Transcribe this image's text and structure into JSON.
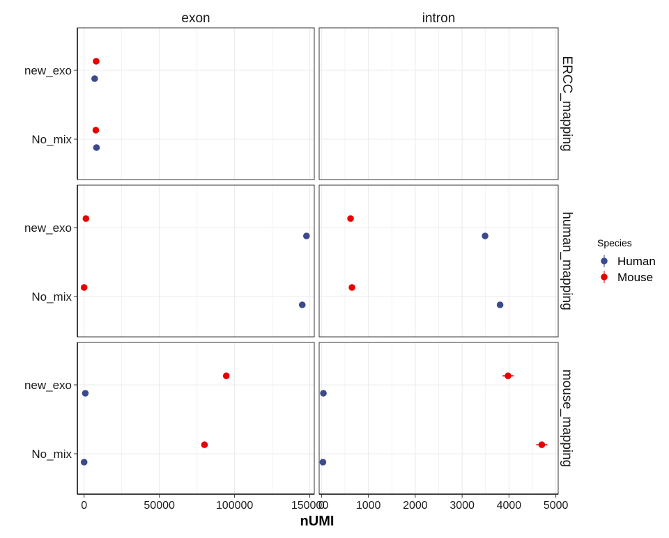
{
  "chart_data": {
    "type": "scatter",
    "title": "",
    "xlabel": "nUMI",
    "ylabel": "",
    "columns": [
      "exon",
      "intron"
    ],
    "rows": [
      "ERCC_mapping",
      "human_mapping",
      "mouse_mapping"
    ],
    "categories": [
      "new_exo",
      "No_mix"
    ],
    "x_ticks": {
      "exon": [
        "0",
        "50000",
        "100000",
        "150000"
      ],
      "intron": [
        "0",
        "1000",
        "2000",
        "3000",
        "4000",
        "5000"
      ]
    },
    "xlim": {
      "exon": [
        -4500,
        153000
      ],
      "intron": [
        -50,
        5050
      ]
    },
    "grid": true,
    "legend": {
      "title": "Species",
      "position": "right",
      "entries": [
        {
          "name": "Human",
          "color": "#3b4a8c"
        },
        {
          "name": "Mouse",
          "color": "#e60000"
        }
      ]
    },
    "series": [
      {
        "name": "Human",
        "color": "#3b4a8c",
        "points": [
          {
            "row": "ERCC_mapping",
            "col": "exon",
            "category": "new_exo",
            "x": 7000
          },
          {
            "row": "ERCC_mapping",
            "col": "exon",
            "category": "No_mix",
            "x": 8200
          },
          {
            "row": "human_mapping",
            "col": "exon",
            "category": "new_exo",
            "x": 147800
          },
          {
            "row": "human_mapping",
            "col": "exon",
            "category": "No_mix",
            "x": 145000
          },
          {
            "row": "human_mapping",
            "col": "intron",
            "category": "new_exo",
            "x": 3490
          },
          {
            "row": "human_mapping",
            "col": "intron",
            "category": "No_mix",
            "x": 3810
          },
          {
            "row": "mouse_mapping",
            "col": "exon",
            "category": "new_exo",
            "x": 800
          },
          {
            "row": "mouse_mapping",
            "col": "exon",
            "category": "No_mix",
            "x": 0
          },
          {
            "row": "mouse_mapping",
            "col": "intron",
            "category": "new_exo",
            "x": 40
          },
          {
            "row": "mouse_mapping",
            "col": "intron",
            "category": "No_mix",
            "x": 30
          }
        ]
      },
      {
        "name": "Mouse",
        "color": "#e60000",
        "points": [
          {
            "row": "ERCC_mapping",
            "col": "exon",
            "category": "new_exo",
            "x": 8000
          },
          {
            "row": "ERCC_mapping",
            "col": "exon",
            "category": "No_mix",
            "x": 7800
          },
          {
            "row": "human_mapping",
            "col": "exon",
            "category": "new_exo",
            "x": 1200
          },
          {
            "row": "human_mapping",
            "col": "exon",
            "category": "No_mix",
            "x": 0
          },
          {
            "row": "human_mapping",
            "col": "intron",
            "category": "new_exo",
            "x": 620
          },
          {
            "row": "human_mapping",
            "col": "intron",
            "category": "No_mix",
            "x": 650
          },
          {
            "row": "mouse_mapping",
            "col": "exon",
            "category": "new_exo",
            "x": 94500
          },
          {
            "row": "mouse_mapping",
            "col": "exon",
            "category": "No_mix",
            "x": 80000
          },
          {
            "row": "mouse_mapping",
            "col": "intron",
            "category": "new_exo",
            "x": 3980
          },
          {
            "row": "mouse_mapping",
            "col": "intron",
            "category": "No_mix",
            "x": 4700
          }
        ]
      }
    ]
  }
}
